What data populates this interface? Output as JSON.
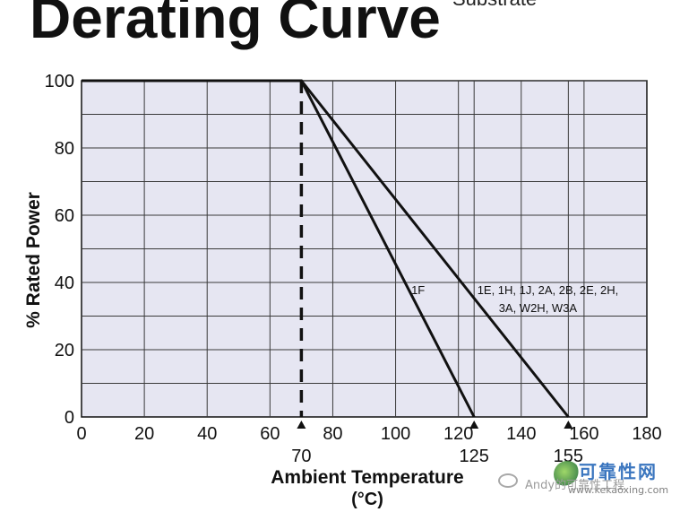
{
  "header": {
    "title": "Derating Curve",
    "title_fragment": "Substrate"
  },
  "colors": {
    "plot_bg": "#e6e6f2",
    "grid": "#3a3a3a",
    "line": "#111111",
    "text": "#111111"
  },
  "chart_data": {
    "type": "line",
    "title": "Derating Curve",
    "xlabel": "Ambient Temperature",
    "xlabel_unit": "(°C)",
    "ylabel": "% Rated Power",
    "xlim": [
      0,
      180
    ],
    "ylim": [
      0,
      100
    ],
    "grid": true,
    "x_ticks": [
      0,
      20,
      40,
      60,
      80,
      100,
      120,
      140,
      160,
      180
    ],
    "y_ticks": [
      0,
      20,
      40,
      60,
      80,
      100
    ],
    "special_ticks": [
      {
        "x": 70,
        "label": "70"
      },
      {
        "x": 125,
        "label": "125"
      },
      {
        "x": 155,
        "label": "155"
      }
    ],
    "series": [
      {
        "x": [
          0,
          70,
          125
        ],
        "y": [
          100,
          100,
          0
        ],
        "label": "1F",
        "label_x": 105,
        "label_y": 36.5
      },
      {
        "x": [
          0,
          70,
          155
        ],
        "y": [
          100,
          100,
          0
        ],
        "label_lines": [
          "1E, 1H, 1J, 2A, 2B, 2E, 2H,",
          "3A, W2H, W3A"
        ],
        "label_x": 126,
        "label_y": 36.5
      }
    ],
    "reference_line": {
      "x": 70,
      "y_from": 0,
      "y_to": 100,
      "style": "dashed"
    }
  },
  "watermark": {
    "prefix": "Andy的可靠性工程",
    "name": "可靠性网",
    "url": "www.kekaoxing.com"
  }
}
